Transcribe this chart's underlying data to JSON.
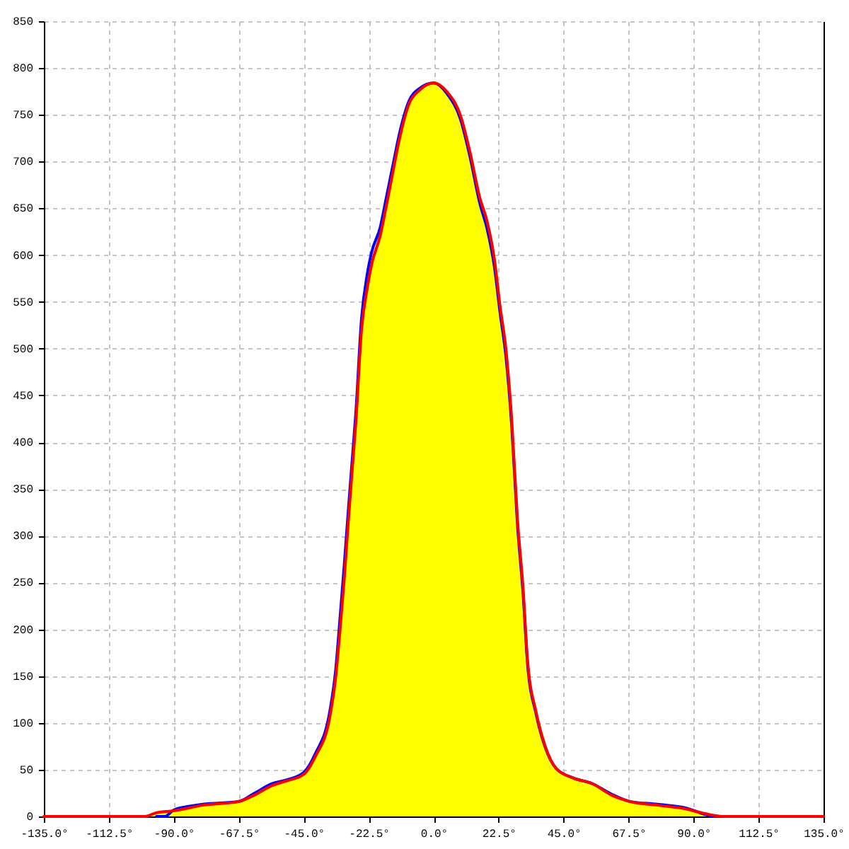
{
  "chart_data": {
    "type": "line",
    "series": [
      {
        "type": "area",
        "color": "#ffff00",
        "x": [
          -100,
          -96,
          -90,
          -80,
          -67.5,
          -62,
          -56,
          -51,
          -45,
          -41,
          -36,
          -34,
          -32.5,
          -31,
          -29.5,
          -28,
          -27,
          -25,
          -23,
          -21.5,
          -18.5,
          -16.5,
          -14,
          -12,
          -8.5,
          -5,
          0,
          4.5,
          9.5,
          12.5,
          16,
          18.5,
          21,
          23,
          25,
          27,
          29,
          31,
          32.5,
          35.5,
          38.5,
          42.5,
          48.5,
          55,
          61.5,
          68,
          77.5,
          87.5,
          94,
          100.5
        ],
        "values": [
          0,
          4,
          6,
          12,
          16,
          23,
          33,
          38,
          45,
          64,
          106,
          147,
          197,
          253,
          318,
          379,
          419,
          520,
          565,
          590,
          621,
          651,
          691,
          722,
          762,
          776,
          784,
          775,
          747,
          711,
          661,
          636,
          596,
          545,
          500,
          425,
          318,
          242,
          167,
          111,
          76,
          51,
          41,
          35,
          23,
          16,
          12,
          8,
          3,
          0
        ]
      },
      {
        "type": "line",
        "color": "#0000ff",
        "x": [
          -96,
          -93,
          -90,
          -80,
          -67.5,
          -62,
          -56,
          -51,
          -45,
          -41,
          -36,
          -34,
          -32.5,
          -31,
          -29.5,
          -28,
          -27,
          -25,
          -23,
          -21.5,
          -18.5,
          -16.5,
          -14,
          -12,
          -8.5,
          -5,
          0,
          4.5,
          9.5,
          12.5,
          16,
          18.5,
          21,
          23,
          25,
          27,
          29,
          31,
          32.5,
          35.5,
          38.5,
          42.5,
          48.5,
          55,
          61.5,
          68,
          77.5,
          87.5,
          94,
          97
        ],
        "values": [
          0,
          0,
          7,
          13,
          16,
          25,
          35,
          39,
          47,
          67,
          112,
          155,
          210,
          268,
          330,
          390,
          430,
          532,
          580,
          603,
          630,
          660,
          698,
          728,
          765,
          778,
          784,
          773,
          743,
          706,
          655,
          628,
          588,
          538,
          492,
          418,
          312,
          236,
          163,
          109,
          75,
          51,
          41,
          35,
          24,
          16,
          13,
          9,
          2,
          0
        ]
      },
      {
        "type": "line",
        "color": "#ff0000",
        "x": [
          -135,
          -100,
          -96,
          -90,
          -80,
          -67.5,
          -62,
          -56,
          -51,
          -45,
          -41,
          -36,
          -34,
          -32.5,
          -31,
          -29.5,
          -28,
          -27,
          -25,
          -23,
          -21.5,
          -18.5,
          -16.5,
          -14,
          -12,
          -8.5,
          -5,
          0,
          4.5,
          9.5,
          12.5,
          16,
          18.5,
          21,
          23,
          25,
          27,
          29,
          31,
          32.5,
          35.5,
          38.5,
          42.5,
          48.5,
          55,
          61.5,
          68,
          77.5,
          87.5,
          94,
          100.5,
          135
        ],
        "values": [
          0,
          0,
          4,
          6,
          12,
          16,
          23,
          33,
          38,
          45,
          64,
          106,
          147,
          197,
          253,
          318,
          379,
          419,
          520,
          565,
          590,
          621,
          651,
          691,
          722,
          762,
          776,
          784,
          775,
          747,
          711,
          661,
          636,
          596,
          545,
          500,
          425,
          318,
          242,
          167,
          111,
          76,
          51,
          41,
          35,
          23,
          16,
          12,
          8,
          3,
          0,
          0
        ]
      }
    ],
    "xlim": [
      -135,
      135
    ],
    "xticks": [
      {
        "value": -135,
        "label": "-135.0°"
      },
      {
        "value": -112.5,
        "label": "-112.5°"
      },
      {
        "value": -90,
        "label": "-90.0°"
      },
      {
        "value": -67.5,
        "label": "-67.5°"
      },
      {
        "value": -45,
        "label": "-45.0°"
      },
      {
        "value": -22.5,
        "label": "-22.5°"
      },
      {
        "value": 0,
        "label": "0.0°"
      },
      {
        "value": 22.5,
        "label": "22.5°"
      },
      {
        "value": 45,
        "label": "45.0°"
      },
      {
        "value": 67.5,
        "label": "67.5°"
      },
      {
        "value": 90,
        "label": "90.0°"
      },
      {
        "value": 112.5,
        "label": "112.5°"
      },
      {
        "value": 135,
        "label": "135.0°"
      }
    ],
    "ylim": [
      0,
      850
    ],
    "yticks": [
      0,
      50,
      100,
      150,
      200,
      250,
      300,
      350,
      400,
      450,
      500,
      550,
      600,
      650,
      700,
      750,
      800,
      850
    ],
    "grid": true
  }
}
